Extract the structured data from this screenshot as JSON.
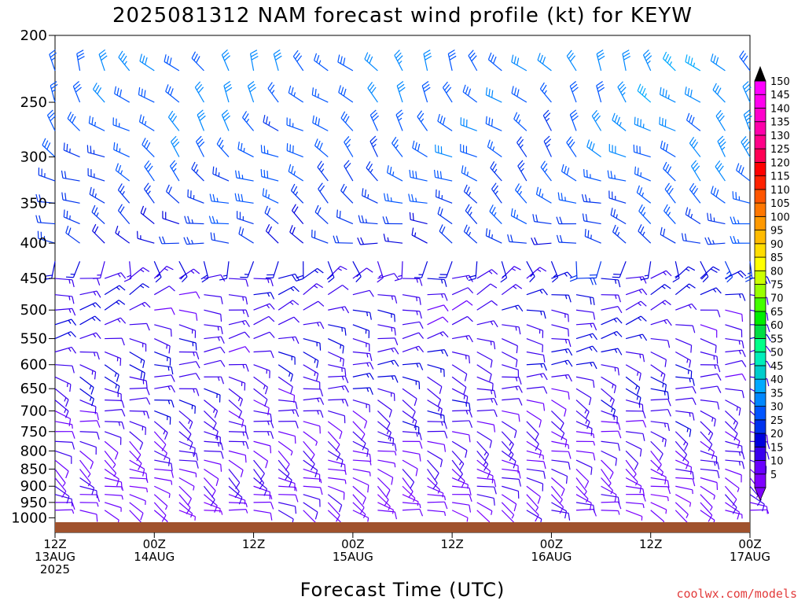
{
  "chart_data": {
    "type": "wind_barb_profile",
    "title": "2025081312 NAM forecast wind profile (kt) for KEYW",
    "xlabel": "Forecast Time (UTC)",
    "credit": "coolwx.com/models",
    "y_axis": {
      "scale": "log",
      "reversed": true,
      "ticks": [
        200,
        250,
        300,
        350,
        400,
        450,
        500,
        550,
        600,
        650,
        700,
        750,
        800,
        850,
        900,
        950,
        1000
      ],
      "range": [
        200,
        1050
      ]
    },
    "x_axis": {
      "range_hours": [
        0,
        84
      ],
      "ticks": [
        {
          "hour": 0,
          "lines": [
            "12Z",
            "13AUG",
            "2025"
          ]
        },
        {
          "hour": 12,
          "lines": [
            "00Z",
            "14AUG"
          ]
        },
        {
          "hour": 24,
          "lines": [
            "12Z"
          ]
        },
        {
          "hour": 36,
          "lines": [
            "00Z",
            "15AUG"
          ]
        },
        {
          "hour": 48,
          "lines": [
            "12Z"
          ]
        },
        {
          "hour": 60,
          "lines": [
            "00Z",
            "16AUG"
          ]
        },
        {
          "hour": 72,
          "lines": [
            "12Z"
          ]
        },
        {
          "hour": 84,
          "lines": [
            "00Z",
            "17AUG"
          ]
        }
      ]
    },
    "colorbar": {
      "label_values": [
        5,
        10,
        15,
        20,
        25,
        30,
        35,
        40,
        45,
        50,
        55,
        60,
        65,
        70,
        75,
        80,
        85,
        90,
        95,
        100,
        105,
        110,
        115,
        120,
        125,
        130,
        135,
        140,
        145,
        150
      ],
      "colors": [
        "#7f00ff",
        "#6a00ff",
        "#3a00ee",
        "#0000dd",
        "#0033ee",
        "#0055ff",
        "#0088ff",
        "#00aaff",
        "#00cccc",
        "#00eebb",
        "#00ff88",
        "#00dd44",
        "#00ee00",
        "#44ff00",
        "#99ff00",
        "#ccff00",
        "#ffff00",
        "#ffdd00",
        "#ffbb00",
        "#ff9900",
        "#ff7700",
        "#ff5500",
        "#ff2200",
        "#ff0000",
        "#ff0055",
        "#ff0088",
        "#ff00aa",
        "#ff00cc",
        "#ff00ee",
        "#ff00ff"
      ]
    },
    "barb_levels": [
      975,
      950,
      925,
      900,
      875,
      850,
      825,
      800,
      775,
      750,
      725,
      700,
      675,
      650,
      625,
      600,
      575,
      550,
      525,
      500,
      475,
      450,
      425,
      400,
      375,
      350,
      325,
      300,
      275,
      250,
      225
    ],
    "barb_times_hours_step": 3,
    "profile_model": {
      "levels": [
        1000,
        850,
        700,
        600,
        500,
        450,
        400,
        350,
        300,
        250,
        225
      ],
      "speed_kt": [
        7,
        9,
        12,
        14,
        13,
        14,
        20,
        24,
        27,
        29,
        30
      ],
      "direction_deg": [
        110,
        120,
        110,
        100,
        80,
        70,
        290,
        300,
        310,
        320,
        325
      ]
    },
    "surface_color": "#a0522d"
  }
}
